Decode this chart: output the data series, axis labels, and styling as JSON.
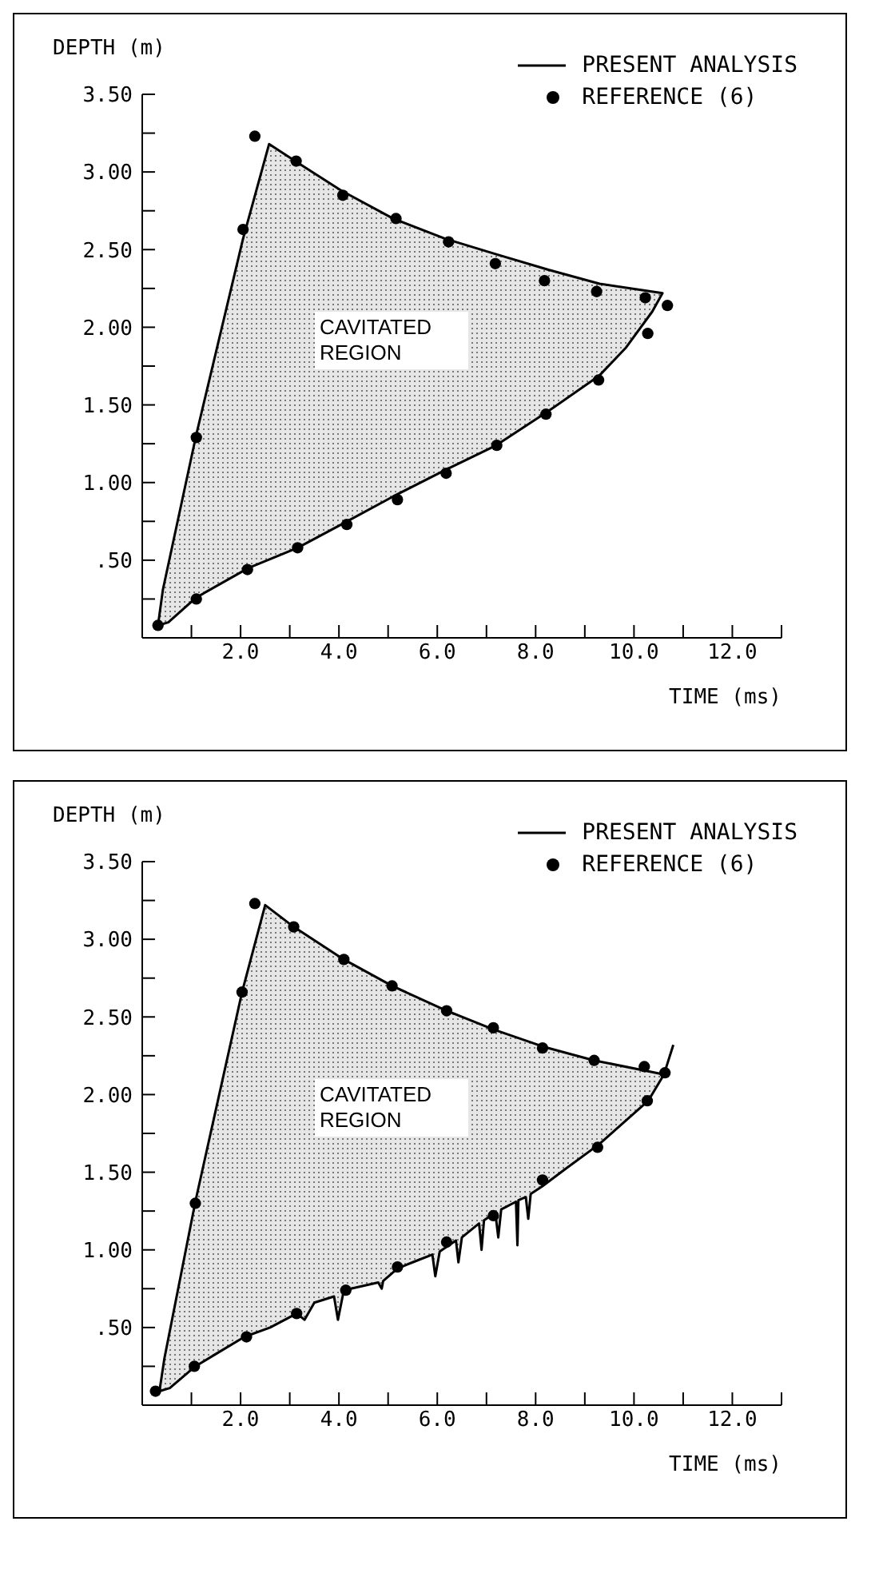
{
  "chart_data": [
    {
      "type": "area",
      "xlabel": "TIME (ms)",
      "ylabel": "DEPTH (m)",
      "xlim": [
        0,
        13
      ],
      "ylim": [
        0,
        3.5
      ],
      "xticks": [
        {
          "value": 1,
          "label": null
        },
        {
          "value": 2,
          "label": "2.0"
        },
        {
          "value": 3,
          "label": null
        },
        {
          "value": 4,
          "label": "4.0"
        },
        {
          "value": 5,
          "label": null
        },
        {
          "value": 6,
          "label": "6.0"
        },
        {
          "value": 7,
          "label": null
        },
        {
          "value": 8,
          "label": "8.0"
        },
        {
          "value": 9,
          "label": null
        },
        {
          "value": 10,
          "label": "10.0"
        },
        {
          "value": 11,
          "label": null
        },
        {
          "value": 12,
          "label": "12.0"
        },
        {
          "value": 13,
          "label": null
        }
      ],
      "yticks": [
        {
          "value": 0.25,
          "label": null
        },
        {
          "value": 0.5,
          "label": ".50"
        },
        {
          "value": 0.75,
          "label": null
        },
        {
          "value": 1,
          "label": "1.00"
        },
        {
          "value": 1.25,
          "label": null
        },
        {
          "value": 1.5,
          "label": "1.50"
        },
        {
          "value": 1.75,
          "label": null
        },
        {
          "value": 2,
          "label": "2.00"
        },
        {
          "value": 2.25,
          "label": null
        },
        {
          "value": 2.5,
          "label": "2.50"
        },
        {
          "value": 2.75,
          "label": null
        },
        {
          "value": 3,
          "label": "3.00"
        },
        {
          "value": 3.25,
          "label": null
        },
        {
          "value": 3.5,
          "label": "3.50"
        }
      ],
      "legend": "top right",
      "annotations": [
        "CAVITATED REGION"
      ],
      "series": [
        {
          "name": "PRESENT ANALYSIS",
          "color": "#000000",
          "x": [
            0.32,
            0.42,
            1.1,
            2.05,
            2.58,
            3.16,
            4.05,
            5.1,
            6.16,
            7.2,
            8.26,
            9.3,
            10.58,
            10.37,
            9.84,
            9.3,
            8.26,
            7.2,
            6.16,
            5.1,
            4.05,
            3.16,
            2.16,
            1.1,
            0.53,
            0.32
          ],
          "values": [
            0.08,
            0.31,
            1.31,
            2.57,
            3.18,
            3.06,
            2.88,
            2.7,
            2.57,
            2.47,
            2.37,
            2.28,
            2.22,
            2.1,
            1.87,
            1.69,
            1.46,
            1.24,
            1.08,
            0.91,
            0.73,
            0.58,
            0.45,
            0.26,
            0.1,
            0.08
          ]
        },
        {
          "type": "scatter",
          "name": "REFERENCE (6)",
          "color": "#000000",
          "marker": "circle",
          "x": [
            0.32,
            1.1,
            2.05,
            2.29,
            3.13,
            4.08,
            5.16,
            6.23,
            7.18,
            8.18,
            9.24,
            10.23,
            10.68,
            10.28,
            9.28,
            8.21,
            7.21,
            6.18,
            5.19,
            4.16,
            3.16,
            2.14,
            1.1
          ],
          "values": [
            0.08,
            1.29,
            2.63,
            3.23,
            3.07,
            2.85,
            2.7,
            2.55,
            2.41,
            2.3,
            2.23,
            2.19,
            2.14,
            1.96,
            1.66,
            1.44,
            1.24,
            1.06,
            0.89,
            0.73,
            0.58,
            0.44,
            0.25
          ]
        }
      ]
    },
    {
      "type": "area",
      "xlabel": "TIME (ms)",
      "ylabel": "DEPTH (m)",
      "xlim": [
        0,
        13
      ],
      "ylim": [
        0,
        3.5
      ],
      "xticks": [
        {
          "value": 1,
          "label": null
        },
        {
          "value": 2,
          "label": "2.0"
        },
        {
          "value": 3,
          "label": null
        },
        {
          "value": 4,
          "label": "4.0"
        },
        {
          "value": 5,
          "label": null
        },
        {
          "value": 6,
          "label": "6.0"
        },
        {
          "value": 7,
          "label": null
        },
        {
          "value": 8,
          "label": "8.0"
        },
        {
          "value": 9,
          "label": null
        },
        {
          "value": 10,
          "label": "10.0"
        },
        {
          "value": 11,
          "label": null
        },
        {
          "value": 12,
          "label": "12.0"
        },
        {
          "value": 13,
          "label": null
        }
      ],
      "yticks": [
        {
          "value": 0.25,
          "label": null
        },
        {
          "value": 0.5,
          "label": ".50"
        },
        {
          "value": 0.75,
          "label": null
        },
        {
          "value": 1,
          "label": "1.00"
        },
        {
          "value": 1.25,
          "label": null
        },
        {
          "value": 1.5,
          "label": "1.50"
        },
        {
          "value": 1.75,
          "label": null
        },
        {
          "value": 2,
          "label": "2.00"
        },
        {
          "value": 2.25,
          "label": null
        },
        {
          "value": 2.5,
          "label": "2.50"
        },
        {
          "value": 2.75,
          "label": null
        },
        {
          "value": 3,
          "label": "3.00"
        },
        {
          "value": 3.25,
          "label": null
        },
        {
          "value": 3.5,
          "label": "3.50"
        }
      ],
      "legend": "top right",
      "annotations": [
        "CAVITATED REGION"
      ],
      "series": [
        {
          "name": "PRESENT ANALYSIS",
          "color": "#000000",
          "x": [
            10.8,
            10.61,
            10.29,
            9.29,
            8.6,
            8.14,
            7.9,
            7.85,
            7.8,
            7.65,
            7.63,
            7.6,
            7.3,
            7.24,
            7.18,
            6.95,
            6.9,
            6.85,
            6.5,
            6.43,
            6.38,
            6.05,
            5.96,
            5.9,
            5.5,
            5.19,
            4.9,
            4.87,
            4.8,
            4.1,
            3.98,
            3.9,
            3.5,
            3.3,
            3.14,
            2.6,
            2.08,
            1.5,
            1.08,
            0.56,
            0.35,
            0.45,
            1.08,
            2.03,
            2.5,
            3.08,
            4.1,
            5.08,
            6.19,
            7.14,
            8.14,
            9.19,
            10.61
          ],
          "values": [
            2.32,
            2.13,
            1.96,
            1.68,
            1.52,
            1.41,
            1.36,
            1.2,
            1.34,
            1.32,
            1.03,
            1.31,
            1.26,
            1.08,
            1.24,
            1.19,
            1.0,
            1.17,
            1.08,
            0.92,
            1.06,
            0.99,
            0.83,
            0.97,
            0.92,
            0.88,
            0.8,
            0.75,
            0.79,
            0.74,
            0.55,
            0.7,
            0.66,
            0.55,
            0.59,
            0.5,
            0.44,
            0.33,
            0.25,
            0.11,
            0.09,
            0.3,
            1.31,
            2.66,
            3.22,
            3.08,
            2.87,
            2.7,
            2.54,
            2.42,
            2.31,
            2.22,
            2.13
          ]
        },
        {
          "type": "scatter",
          "name": "REFERENCE (6)",
          "color": "#000000",
          "marker": "circle",
          "x": [
            0.27,
            1.08,
            2.03,
            2.29,
            3.08,
            4.1,
            5.08,
            6.19,
            7.14,
            8.14,
            9.19,
            10.21,
            10.63,
            10.27,
            9.26,
            8.14,
            7.14,
            6.19,
            5.19,
            4.14,
            3.14,
            2.12,
            1.06
          ],
          "values": [
            0.09,
            1.3,
            2.66,
            3.23,
            3.08,
            2.87,
            2.7,
            2.54,
            2.43,
            2.3,
            2.22,
            2.18,
            2.14,
            1.96,
            1.66,
            1.45,
            1.22,
            1.05,
            0.89,
            0.74,
            0.59,
            0.44,
            0.25
          ]
        }
      ]
    }
  ]
}
